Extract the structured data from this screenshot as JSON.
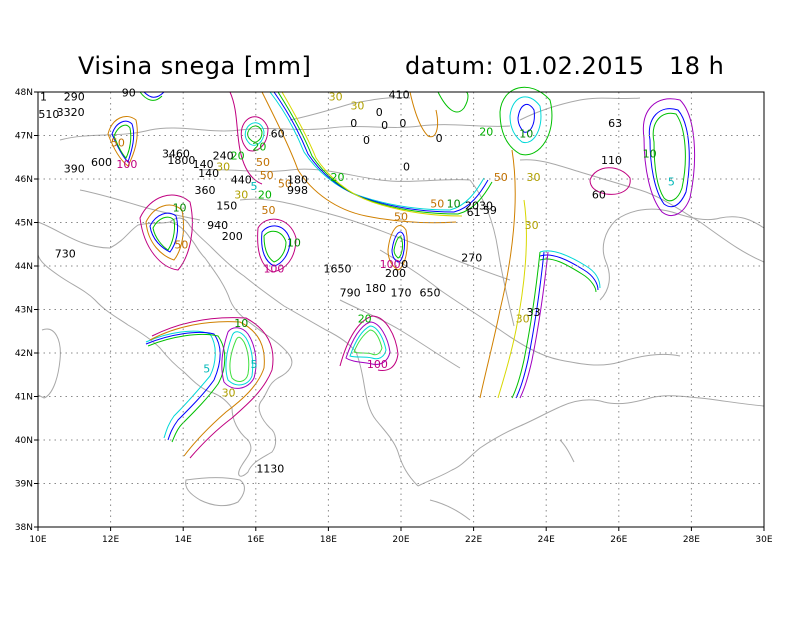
{
  "title": "Visina snega [mm]",
  "date_label": "datum: 01.02.2015   18 h",
  "axes": {
    "lon_ticks": [
      "10E",
      "12E",
      "14E",
      "16E",
      "18E",
      "20E",
      "22E",
      "24E",
      "26E",
      "28E",
      "30E"
    ],
    "lat_ticks": [
      "48N",
      "47N",
      "46N",
      "45N",
      "44N",
      "43N",
      "42N",
      "41N",
      "40N",
      "39N",
      "38N"
    ],
    "lon_range": [
      10,
      30
    ],
    "lat_range": [
      38,
      48
    ],
    "grid": true
  },
  "contour_colors": {
    "5": "#00d8d8",
    "10": "#00c000",
    "20": "#40e040",
    "30": "#d8d800",
    "50": "#d08000",
    "100": "#c00080",
    "blue": "#0000ff",
    "purple": "#a000c0"
  },
  "labels": [
    {
      "t": "290",
      "lon": 11.0,
      "lat": 47.8
    },
    {
      "t": "1",
      "lon": 10.15,
      "lat": 47.8
    },
    {
      "t": "510",
      "lon": 10.3,
      "lat": 47.4
    },
    {
      "t": "3320",
      "lon": 10.9,
      "lat": 47.45
    },
    {
      "t": "90",
      "lon": 12.5,
      "lat": 47.9
    },
    {
      "t": "390",
      "lon": 11.0,
      "lat": 46.15
    },
    {
      "t": "600",
      "lon": 11.75,
      "lat": 46.3
    },
    {
      "t": "50",
      "lon": 12.2,
      "lat": 46.75
    },
    {
      "t": "100",
      "lon": 12.45,
      "lat": 46.25
    },
    {
      "t": "3460",
      "lon": 13.8,
      "lat": 46.5
    },
    {
      "t": "1800",
      "lon": 13.95,
      "lat": 46.35
    },
    {
      "t": "140",
      "lon": 14.55,
      "lat": 46.25
    },
    {
      "t": "140",
      "lon": 14.7,
      "lat": 46.05
    },
    {
      "t": "240",
      "lon": 15.1,
      "lat": 46.45
    },
    {
      "t": "20",
      "lon": 15.5,
      "lat": 46.45
    },
    {
      "t": "30",
      "lon": 15.1,
      "lat": 46.2
    },
    {
      "t": "20",
      "lon": 16.1,
      "lat": 46.65
    },
    {
      "t": "50",
      "lon": 16.2,
      "lat": 46.3
    },
    {
      "t": "440",
      "lon": 15.6,
      "lat": 45.9
    },
    {
      "t": "5",
      "lon": 15.95,
      "lat": 45.75
    },
    {
      "t": "50",
      "lon": 16.3,
      "lat": 46.0
    },
    {
      "t": "50",
      "lon": 16.8,
      "lat": 45.8
    },
    {
      "t": "180",
      "lon": 17.15,
      "lat": 45.9
    },
    {
      "t": "998",
      "lon": 17.15,
      "lat": 45.65
    },
    {
      "t": "20",
      "lon": 16.25,
      "lat": 45.55
    },
    {
      "t": "360",
      "lon": 14.6,
      "lat": 45.65
    },
    {
      "t": "30",
      "lon": 15.6,
      "lat": 45.55
    },
    {
      "t": "150",
      "lon": 15.2,
      "lat": 45.3
    },
    {
      "t": "50",
      "lon": 16.35,
      "lat": 45.2
    },
    {
      "t": "10",
      "lon": 13.9,
      "lat": 45.25
    },
    {
      "t": "940",
      "lon": 14.95,
      "lat": 44.85
    },
    {
      "t": "200",
      "lon": 15.35,
      "lat": 44.6
    },
    {
      "t": "50",
      "lon": 13.95,
      "lat": 44.4
    },
    {
      "t": "730",
      "lon": 10.75,
      "lat": 44.2
    },
    {
      "t": "10",
      "lon": 17.05,
      "lat": 44.45
    },
    {
      "t": "100",
      "lon": 16.5,
      "lat": 43.85
    },
    {
      "t": "60",
      "lon": 16.6,
      "lat": 46.95
    },
    {
      "t": "30",
      "lon": 18.2,
      "lat": 47.8
    },
    {
      "t": "30",
      "lon": 18.8,
      "lat": 47.6
    },
    {
      "t": "0",
      "lon": 18.7,
      "lat": 47.2
    },
    {
      "t": "0",
      "lon": 19.4,
      "lat": 47.45
    },
    {
      "t": "0",
      "lon": 19.55,
      "lat": 47.15
    },
    {
      "t": "0",
      "lon": 19.05,
      "lat": 46.8
    },
    {
      "t": "410",
      "lon": 19.95,
      "lat": 47.85
    },
    {
      "t": "0",
      "lon": 20.05,
      "lat": 47.2
    },
    {
      "t": "0",
      "lon": 21.05,
      "lat": 46.85
    },
    {
      "t": "0",
      "lon": 20.15,
      "lat": 46.2
    },
    {
      "t": "20",
      "lon": 18.25,
      "lat": 45.95
    },
    {
      "t": "50",
      "lon": 20.0,
      "lat": 45.05
    },
    {
      "t": "50",
      "lon": 21.0,
      "lat": 45.35
    },
    {
      "t": "10",
      "lon": 21.45,
      "lat": 45.35
    },
    {
      "t": "2030",
      "lon": 22.15,
      "lat": 45.3
    },
    {
      "t": "61",
      "lon": 22.0,
      "lat": 45.15
    },
    {
      "t": "59",
      "lon": 22.45,
      "lat": 45.2
    },
    {
      "t": "20",
      "lon": 22.35,
      "lat": 47.0
    },
    {
      "t": "10",
      "lon": 23.45,
      "lat": 46.95
    },
    {
      "t": "50",
      "lon": 22.75,
      "lat": 45.95
    },
    {
      "t": "30",
      "lon": 23.65,
      "lat": 45.95
    },
    {
      "t": "30",
      "lon": 23.6,
      "lat": 44.85
    },
    {
      "t": "63",
      "lon": 25.9,
      "lat": 47.2
    },
    {
      "t": "110",
      "lon": 25.8,
      "lat": 46.35
    },
    {
      "t": "60",
      "lon": 25.45,
      "lat": 45.55
    },
    {
      "t": "10",
      "lon": 26.85,
      "lat": 46.5
    },
    {
      "t": "5",
      "lon": 27.45,
      "lat": 45.85
    },
    {
      "t": "270",
      "lon": 21.95,
      "lat": 44.1
    },
    {
      "t": "1650",
      "lon": 18.25,
      "lat": 43.85
    },
    {
      "t": "100",
      "lon": 19.7,
      "lat": 43.95
    },
    {
      "t": "0",
      "lon": 20.1,
      "lat": 43.95
    },
    {
      "t": "200",
      "lon": 19.85,
      "lat": 43.75
    },
    {
      "t": "790",
      "lon": 18.6,
      "lat": 43.3
    },
    {
      "t": "180",
      "lon": 19.3,
      "lat": 43.4
    },
    {
      "t": "170",
      "lon": 20.0,
      "lat": 43.3
    },
    {
      "t": "650",
      "lon": 20.8,
      "lat": 43.3
    },
    {
      "t": "20",
      "lon": 19.0,
      "lat": 42.7
    },
    {
      "t": "100",
      "lon": 19.35,
      "lat": 41.65
    },
    {
      "t": "33",
      "lon": 23.65,
      "lat": 42.85
    },
    {
      "t": "30",
      "lon": 23.35,
      "lat": 42.7
    },
    {
      "t": "10",
      "lon": 15.6,
      "lat": 42.6
    },
    {
      "t": "5",
      "lon": 14.65,
      "lat": 41.55
    },
    {
      "t": "5",
      "lon": 15.95,
      "lat": 41.65
    },
    {
      "t": "30",
      "lon": 15.25,
      "lat": 41.0
    },
    {
      "t": "1130",
      "lon": 16.4,
      "lat": 39.25
    }
  ]
}
